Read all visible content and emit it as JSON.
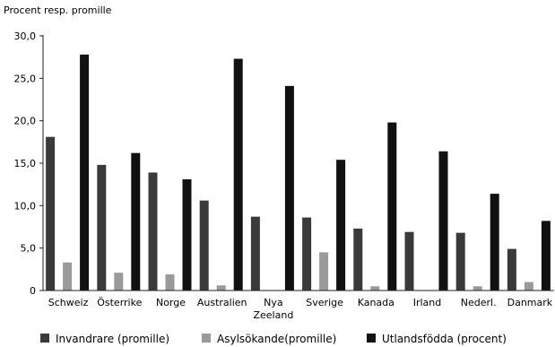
{
  "chart_data": {
    "type": "bar",
    "ylabel": "Procent resp. promille",
    "ylim": [
      0,
      30
    ],
    "yticks": [
      "0",
      "5,0",
      "10,0",
      "15,0",
      "20,0",
      "25,0",
      "30,0"
    ],
    "categories": [
      [
        "Schweiz"
      ],
      [
        "Österrike"
      ],
      [
        "Norge"
      ],
      [
        "Australien"
      ],
      [
        "Nya",
        "Zeeland"
      ],
      [
        "Sverige"
      ],
      [
        "Kanada"
      ],
      [
        "Irland"
      ],
      [
        "Nederl."
      ],
      [
        "Danmark"
      ]
    ],
    "series": [
      {
        "name": "Invandrare (promille)",
        "color": "#3a3a3a",
        "values": [
          18.1,
          14.8,
          13.9,
          10.6,
          8.7,
          8.6,
          7.3,
          6.9,
          6.8,
          4.9
        ]
      },
      {
        "name": "Asylsökande(promille)",
        "color": "#9a9a9a",
        "values": [
          3.3,
          2.1,
          1.9,
          0.6,
          0.0,
          4.5,
          0.5,
          0.0,
          0.5,
          1.0
        ]
      },
      {
        "name": "Utlandsfödda (procent)",
        "color": "#111111",
        "values": [
          27.8,
          16.2,
          13.1,
          27.3,
          24.1,
          15.4,
          19.8,
          16.4,
          11.4,
          8.2
        ]
      }
    ],
    "grid": false,
    "legend": "bottom"
  }
}
